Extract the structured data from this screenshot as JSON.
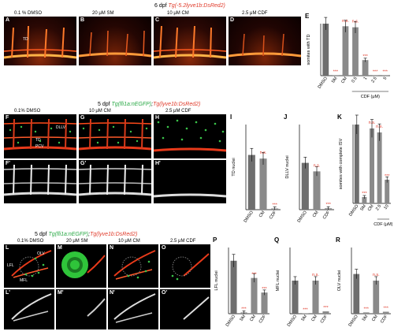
{
  "rows": {
    "row1_title": {
      "stage": "6 dpf",
      "transgene": "Tg(-5.2lyve1b:DsRed2)"
    },
    "row2_title": {
      "stage": "5 dpf",
      "transgene_green": "Tg(fli1a:nEGFP)",
      "sep": ";",
      "transgene_red": "Tg(lyve1b:DsRed2)"
    },
    "row3_title": {
      "stage": "5 dpf",
      "transgene_green": "Tg(fli1a:nEGFP)",
      "sep": ";",
      "transgene_red": "Tg(lyve1b:DsRed2)"
    }
  },
  "panels": {
    "A": {
      "letter": "A",
      "treatment": "0.1 % DMSO",
      "labels": [
        "TD"
      ]
    },
    "B": {
      "letter": "B",
      "treatment": "20 μM SM"
    },
    "C": {
      "letter": "C",
      "treatment": "10 μM CM"
    },
    "D": {
      "letter": "D",
      "treatment": "2.5 μM CDF"
    },
    "F": {
      "letter": "F",
      "treatment": "0.1% DMSO",
      "labels": [
        "DLLV",
        "TD",
        "PCV"
      ]
    },
    "G": {
      "letter": "G",
      "treatment": "10 μM CM"
    },
    "H": {
      "letter": "H",
      "treatment": "2.5 μM CDF"
    },
    "F2": {
      "letter": "F'"
    },
    "G2": {
      "letter": "G'"
    },
    "H2": {
      "letter": "H'"
    },
    "L": {
      "letter": "L",
      "treatment": "0.1% DMSO",
      "labels": [
        "OLV",
        "LFL",
        "MFL"
      ]
    },
    "M": {
      "letter": "M",
      "treatment": "20 μM SM"
    },
    "N": {
      "letter": "N",
      "treatment": "10 μM CM"
    },
    "O": {
      "letter": "O",
      "treatment": "2.5 μM CDF"
    },
    "L2": {
      "letter": "L'"
    },
    "M2": {
      "letter": "M'"
    },
    "N2": {
      "letter": "N'"
    },
    "O2": {
      "letter": "O'"
    }
  },
  "colors": {
    "bar": "#8a8a8a",
    "bar_dark": "#6e6e6e",
    "sig": "#e03a2a",
    "ns": "#e03a2a"
  },
  "chart_data": [
    {
      "panel": "E",
      "type": "bar",
      "ylabel": "somites with TD",
      "categories": [
        "DMSO",
        "SM",
        "CM",
        "0.5",
        "1",
        "2.5",
        "5"
      ],
      "values": [
        10,
        0.1,
        9.5,
        9.3,
        3,
        0.1,
        0.1
      ],
      "ylim": [
        0,
        10
      ],
      "annotations": [
        "",
        "***",
        "n.s.",
        "n.s.",
        "***",
        "***",
        "***"
      ],
      "group_label": "CDF (μM)"
    },
    {
      "panel": "I",
      "type": "bar",
      "ylabel": "TD nuclei",
      "categories": [
        "DMSO",
        "CM",
        "CDF"
      ],
      "values": [
        45,
        42,
        1
      ],
      "ylim": [
        0,
        70
      ],
      "annotations": [
        "",
        "n.s.",
        "***"
      ]
    },
    {
      "panel": "J",
      "type": "bar",
      "ylabel": "DLLV nuclei",
      "categories": [
        "DMSO",
        "CM",
        "CDF"
      ],
      "values": [
        33,
        27,
        1
      ],
      "ylim": [
        0,
        60
      ],
      "annotations": [
        "",
        "n.s.",
        "***"
      ]
    },
    {
      "panel": "K",
      "type": "bar",
      "ylabel": "somites with complete ISV",
      "categories": [
        "DMSO",
        "SM",
        "CM",
        "2.5",
        "10"
      ],
      "values": [
        10,
        0.8,
        9.5,
        9,
        3
      ],
      "ylim": [
        0,
        10
      ],
      "annotations": [
        "",
        "***",
        "n.s.",
        "n.s.",
        "***"
      ],
      "group_label": "CDF (μM)"
    },
    {
      "panel": "P",
      "type": "bar",
      "ylabel": "LFL nuclei",
      "categories": [
        "DMSO",
        "SM",
        "CM",
        "CDF"
      ],
      "values": [
        40,
        1,
        27,
        16
      ],
      "ylim": [
        0,
        50
      ],
      "annotations": [
        "",
        "***",
        "***",
        "***"
      ]
    },
    {
      "panel": "Q",
      "type": "bar",
      "ylabel": "MFL nuclei",
      "categories": [
        "DMSO",
        "SM",
        "CM",
        "CDF"
      ],
      "values": [
        7,
        0.1,
        7,
        0.5
      ],
      "ylim": [
        0,
        14
      ],
      "annotations": [
        "",
        "***",
        "n.s.",
        "***"
      ]
    },
    {
      "panel": "R",
      "type": "bar",
      "ylabel": "OLV nuclei",
      "categories": [
        "DMSO",
        "SM",
        "CM",
        "CDF"
      ],
      "values": [
        6,
        0.2,
        5,
        0.3
      ],
      "ylim": [
        0,
        10
      ],
      "annotations": [
        "",
        "***",
        "n.s.",
        "***"
      ]
    }
  ]
}
